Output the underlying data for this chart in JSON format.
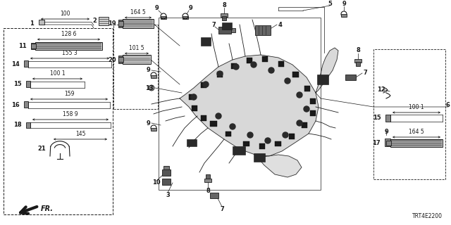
{
  "bg_color": "#ffffff",
  "lc": "#1a1a1a",
  "diagram_code": "TRT4E2200",
  "fig_w": 6.4,
  "fig_h": 3.2,
  "dpi": 100
}
